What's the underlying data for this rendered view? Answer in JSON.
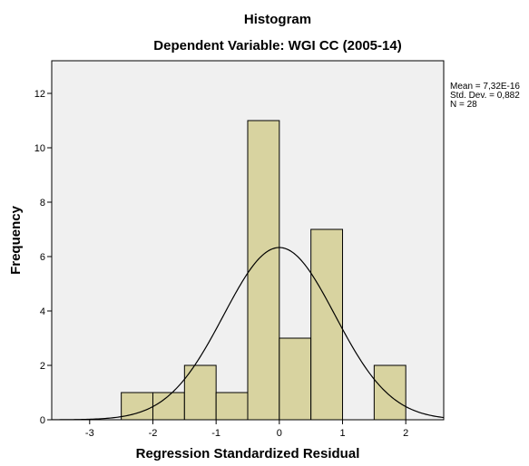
{
  "chart_data": {
    "type": "bar",
    "title": "Histogram",
    "subtitle": "Dependent Variable: WGI CC (2005-14)",
    "xlabel": "Regression Standardized Residual",
    "ylabel": "Frequency",
    "xlim": [
      -3.6,
      2.6
    ],
    "ylim": [
      0,
      13.2
    ],
    "x_ticks": [
      -3,
      -2,
      -1,
      0,
      1,
      2
    ],
    "y_ticks": [
      0,
      2,
      4,
      6,
      8,
      10,
      12
    ],
    "bin_width": 0.5,
    "bins": [
      {
        "start": -2.5,
        "end": -2.0,
        "count": 1
      },
      {
        "start": -2.0,
        "end": -1.5,
        "count": 1
      },
      {
        "start": -1.5,
        "end": -1.0,
        "count": 2
      },
      {
        "start": -1.0,
        "end": -0.5,
        "count": 1
      },
      {
        "start": -0.5,
        "end": 0.0,
        "count": 11
      },
      {
        "start": 0.0,
        "end": 0.5,
        "count": 3
      },
      {
        "start": 0.5,
        "end": 1.0,
        "count": 7
      },
      {
        "start": 1.0,
        "end": 1.5,
        "count": 0
      },
      {
        "start": 1.5,
        "end": 2.0,
        "count": 2
      }
    ],
    "normal_curve": {
      "mean": 0.0,
      "std": 0.882,
      "n": 28
    },
    "stats": {
      "mean_label": "Mean = 7,32E-16",
      "std_label": "Std. Dev. = 0,882",
      "n_label": "N = 28"
    },
    "colors": {
      "bar_fill": "#d8d3a0",
      "bar_stroke": "#000000",
      "plot_bg": "#f0f0f0",
      "curve": "#000000"
    },
    "grid": false
  }
}
